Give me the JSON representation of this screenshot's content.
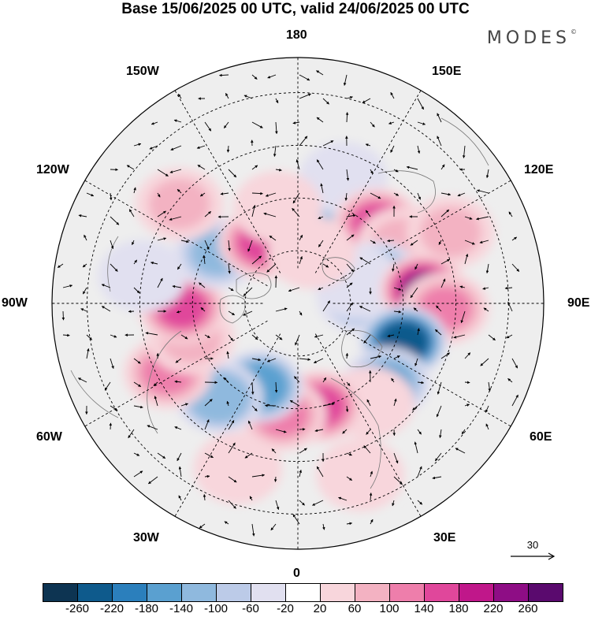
{
  "title": "Base 15/06/2025 00 UTC, valid 24/06/2025 00 UTC",
  "logo": "MODES",
  "logo_mark": "©",
  "longitude_labels": {
    "top": "180",
    "top_left": "150W",
    "top_right": "150E",
    "upper_left": "120W",
    "upper_right": "120E",
    "left": "90W",
    "right": "90E",
    "lower_left": "60W",
    "lower_right": "60E",
    "bottom_left": "30W",
    "bottom_right": "30E",
    "bottom": "0"
  },
  "reference_vector": {
    "value": "30"
  },
  "colorbar": {
    "ticks": [
      "-260",
      "-220",
      "-180",
      "-140",
      "-100",
      "-60",
      "-20",
      "20",
      "60",
      "100",
      "140",
      "180",
      "220",
      "260"
    ],
    "colors": [
      "#0d3452",
      "#0e5a8c",
      "#2b7fbc",
      "#5aa0d0",
      "#8fb9de",
      "#bccbe8",
      "#e1e0f0",
      "#ffffff",
      "#f8d6dc",
      "#f3b2c2",
      "#ee7eab",
      "#e0479b",
      "#c0178a",
      "#8e0d85",
      "#5a0a6e"
    ]
  },
  "anomalies": [
    {
      "lon": 150,
      "lat": 65,
      "v": -120
    },
    {
      "lon": 160,
      "lat": 52,
      "v": -50
    },
    {
      "lon": 135,
      "lat": 58,
      "v": 170
    },
    {
      "lon": 120,
      "lat": 56,
      "v": 60
    },
    {
      "lon": 115,
      "lat": 42,
      "v": 70
    },
    {
      "lon": 108,
      "lat": 66,
      "v": -140
    },
    {
      "lon": 95,
      "lat": 72,
      "v": -100
    },
    {
      "lon": 110,
      "lat": 72,
      "v": -60
    },
    {
      "lon": 96,
      "lat": 54,
      "v": 250
    },
    {
      "lon": 88,
      "lat": 48,
      "v": 120
    },
    {
      "lon": 70,
      "lat": 58,
      "v": -260
    },
    {
      "lon": 48,
      "lat": 56,
      "v": -150
    },
    {
      "lon": 36,
      "lat": 55,
      "v": 40
    },
    {
      "lon": 12,
      "lat": 60,
      "v": 170
    },
    {
      "lon": -8,
      "lat": 58,
      "v": 120
    },
    {
      "lon": -25,
      "lat": 64,
      "v": -180
    },
    {
      "lon": -40,
      "lat": 55,
      "v": -140
    },
    {
      "lon": -62,
      "lat": 48,
      "v": 110
    },
    {
      "lon": -72,
      "lat": 58,
      "v": 60
    },
    {
      "lon": -88,
      "lat": 57,
      "v": 170
    },
    {
      "lon": -122,
      "lat": 63,
      "v": -130
    },
    {
      "lon": -150,
      "lat": 70,
      "v": 150
    },
    {
      "lon": -168,
      "lat": 62,
      "v": 50
    },
    {
      "lon": -130,
      "lat": 46,
      "v": 60
    },
    {
      "lon": -100,
      "lat": 45,
      "v": -40
    },
    {
      "lon": -20,
      "lat": 40,
      "v": 50
    },
    {
      "lon": 20,
      "lat": 38,
      "v": 40
    },
    {
      "lon": 165,
      "lat": 75,
      "v": 40
    }
  ]
}
